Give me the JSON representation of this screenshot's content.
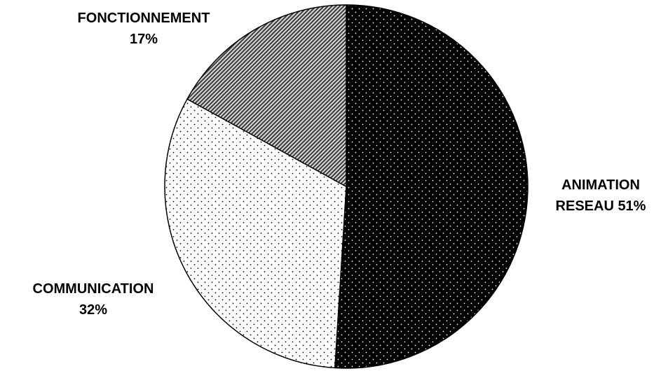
{
  "chart_data": {
    "type": "pie",
    "title": "",
    "slices": [
      {
        "name": "ANIMATION RESEAU",
        "value": 51,
        "value_label": "51%",
        "label_lines": [
          "ANIMATION",
          "RESEAU 51%"
        ],
        "pattern": "dark-dots",
        "fill": "#000000"
      },
      {
        "name": "COMMUNICATION",
        "value": 32,
        "value_label": "32%",
        "label_lines": [
          "COMMUNICATION",
          "32%"
        ],
        "pattern": "light-dots",
        "fill": "#ffffff"
      },
      {
        "name": "FONCTIONNEMENT",
        "value": 17,
        "value_label": "17%",
        "label_lines": [
          "FONCTIONNEMENT",
          "17%"
        ],
        "pattern": "diagonal-hatch",
        "fill": "#9a9a9a"
      }
    ],
    "start_angle_deg": 0,
    "direction": "clockwise",
    "legend": "none",
    "outline_color": "#000000"
  }
}
